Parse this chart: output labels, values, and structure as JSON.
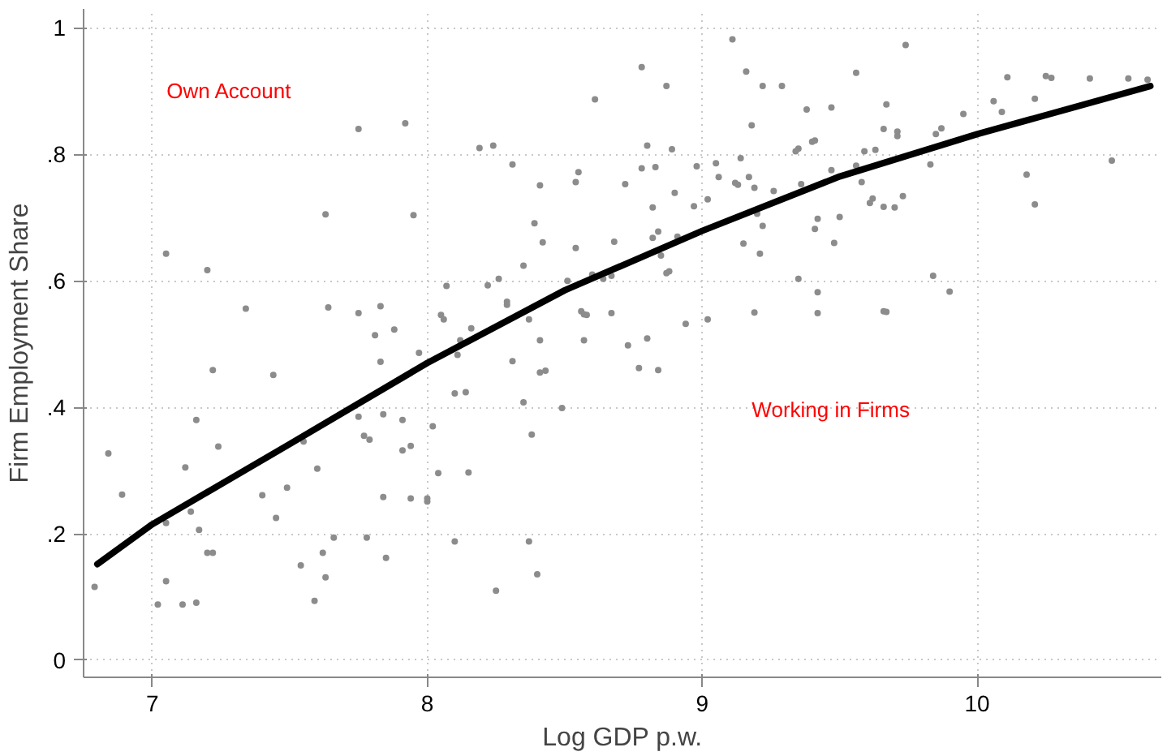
{
  "chart_data": {
    "type": "scatter",
    "xlabel": "Log GDP p.w.",
    "ylabel": "Firm Employment Share",
    "xlim": [
      6.75,
      10.67
    ],
    "ylim": [
      -0.027,
      1.03
    ],
    "xticks": [
      7,
      8,
      9,
      10
    ],
    "yticks": [
      {
        "value": 0,
        "label": "0"
      },
      {
        "value": 0.2,
        "label": ".2"
      },
      {
        "value": 0.4,
        "label": ".4"
      },
      {
        "value": 0.6,
        "label": ".6"
      },
      {
        "value": 0.8,
        "label": ".8"
      },
      {
        "value": 1,
        "label": "1"
      }
    ],
    "grid": true,
    "marker": "circle",
    "annotations": [
      "Own Account",
      "Working in Firms"
    ],
    "series": [
      {
        "color": "#8c8c8c",
        "x": [
          7.75,
          7.92,
          7.63,
          7.95,
          7.05,
          7.2,
          7.34,
          7.64,
          7.75,
          7.83,
          7.81,
          7.88,
          8.07,
          8.05,
          8.06,
          7.97,
          7.83,
          7.22,
          7.44,
          7.16,
          7.75,
          7.84,
          7.91,
          8.02,
          6.84,
          7.24,
          7.55,
          7.77,
          7.79,
          7.91,
          7.94,
          7.12,
          7.6,
          8.04,
          6.89,
          7.4,
          7.49,
          7.84,
          7.94,
          8.0,
          8.0,
          7.14,
          7.45,
          7.05,
          7.17,
          7.66,
          7.78,
          7.2,
          7.22,
          7.62,
          7.85,
          7.54,
          7.05,
          7.63,
          6.79,
          7.02,
          7.11,
          7.16,
          7.59,
          9.11,
          8.78,
          9.16,
          8.87,
          9.22,
          9.29,
          8.61,
          9.18,
          8.19,
          8.24,
          8.8,
          8.89,
          9.35,
          9.34,
          9.14,
          8.31,
          9.05,
          8.78,
          8.83,
          8.98,
          8.55,
          9.06,
          9.17,
          8.54,
          9.12,
          9.13,
          8.41,
          8.72,
          9.19,
          9.36,
          9.26,
          8.9,
          9.02,
          8.97,
          8.82,
          9.2,
          8.39,
          9.22,
          8.84,
          8.82,
          8.91,
          8.42,
          8.68,
          9.15,
          8.54,
          8.85,
          9.21,
          8.35,
          8.88,
          8.87,
          8.6,
          8.67,
          8.26,
          8.64,
          8.51,
          9.35,
          8.22,
          8.29,
          8.29,
          8.16,
          8.37,
          8.56,
          8.57,
          8.58,
          8.67,
          9.02,
          9.19,
          8.94,
          8.12,
          8.41,
          8.57,
          8.8,
          8.73,
          8.11,
          8.31,
          8.41,
          8.43,
          8.77,
          8.84,
          8.1,
          8.14,
          8.35,
          8.49,
          8.38,
          8.15,
          8.1,
          8.37,
          8.4,
          8.25,
          9.74,
          9.56,
          10.11,
          10.25,
          10.27,
          10.41,
          10.55,
          10.62,
          9.38,
          9.47,
          9.67,
          10.06,
          10.21,
          10.09,
          9.95,
          9.66,
          9.71,
          9.71,
          9.87,
          9.85,
          9.4,
          9.41,
          9.59,
          9.63,
          9.47,
          9.56,
          9.83,
          10.49,
          9.58,
          10.18,
          9.62,
          9.61,
          9.73,
          9.66,
          9.7,
          10.21,
          9.42,
          9.5,
          9.41,
          9.48,
          9.84,
          9.42,
          9.9,
          9.42,
          9.66,
          9.67
        ],
        "values": [
          0.84,
          0.849,
          0.705,
          0.704,
          0.643,
          0.617,
          0.556,
          0.558,
          0.549,
          0.56,
          0.514,
          0.523,
          0.592,
          0.546,
          0.539,
          0.486,
          0.472,
          0.459,
          0.451,
          0.38,
          0.385,
          0.389,
          0.38,
          0.37,
          0.327,
          0.338,
          0.346,
          0.355,
          0.349,
          0.332,
          0.339,
          0.305,
          0.303,
          0.296,
          0.262,
          0.261,
          0.273,
          0.258,
          0.256,
          0.256,
          0.251,
          0.235,
          0.225,
          0.217,
          0.206,
          0.194,
          0.194,
          0.17,
          0.17,
          0.17,
          0.162,
          0.15,
          0.125,
          0.131,
          0.116,
          0.088,
          0.088,
          0.091,
          0.094,
          0.982,
          0.938,
          0.931,
          0.908,
          0.908,
          0.908,
          0.887,
          0.846,
          0.81,
          0.814,
          0.814,
          0.808,
          0.809,
          0.805,
          0.794,
          0.784,
          0.786,
          0.778,
          0.78,
          0.781,
          0.772,
          0.764,
          0.764,
          0.756,
          0.755,
          0.752,
          0.751,
          0.753,
          0.747,
          0.753,
          0.742,
          0.739,
          0.729,
          0.718,
          0.716,
          0.706,
          0.691,
          0.687,
          0.678,
          0.668,
          0.67,
          0.661,
          0.662,
          0.659,
          0.652,
          0.64,
          0.643,
          0.624,
          0.615,
          0.612,
          0.61,
          0.608,
          0.603,
          0.603,
          0.6,
          0.603,
          0.593,
          0.567,
          0.562,
          0.525,
          0.539,
          0.552,
          0.547,
          0.546,
          0.549,
          0.539,
          0.55,
          0.532,
          0.506,
          0.506,
          0.506,
          0.509,
          0.498,
          0.483,
          0.473,
          0.455,
          0.458,
          0.462,
          0.459,
          0.422,
          0.424,
          0.408,
          0.399,
          0.357,
          0.297,
          0.188,
          0.188,
          0.136,
          0.11,
          0.973,
          0.929,
          0.922,
          0.924,
          0.921,
          0.92,
          0.92,
          0.918,
          0.871,
          0.874,
          0.879,
          0.884,
          0.888,
          0.867,
          0.864,
          0.84,
          0.836,
          0.829,
          0.841,
          0.832,
          0.82,
          0.822,
          0.805,
          0.807,
          0.775,
          0.782,
          0.784,
          0.79,
          0.756,
          0.768,
          0.73,
          0.723,
          0.734,
          0.717,
          0.716,
          0.721,
          0.698,
          0.701,
          0.682,
          0.66,
          0.608,
          0.582,
          0.583,
          0.549,
          0.552,
          0.551
        ]
      },
      {
        "type": "line",
        "color": "#000000",
        "marker": "none",
        "x": [
          6.8,
          7.0,
          7.5,
          8.0,
          8.5,
          9.0,
          9.5,
          10.0,
          10.63
        ],
        "values": [
          0.152,
          0.215,
          0.342,
          0.47,
          0.585,
          0.679,
          0.765,
          0.832,
          0.908
        ]
      }
    ]
  }
}
